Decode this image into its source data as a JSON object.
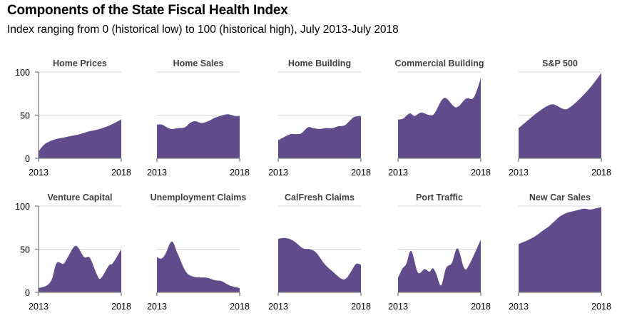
{
  "title": "Components of the State Fiscal Health Index",
  "subtitle": "Index ranging from 0 (historical low) to 100 (historical high), July 2013-July 2018",
  "colors": {
    "area": "#614b8b",
    "grid": "#d9d9d9",
    "axis": "#7f7f7f",
    "panel_title": "#404040"
  },
  "chart_data": [
    {
      "type": "area",
      "title": "Home Prices",
      "xlabel": "",
      "ylabel": "",
      "ylim": [
        0,
        100
      ],
      "yticks": [
        "0",
        "50",
        "100"
      ],
      "xtick_labels": [
        "2013",
        "2018"
      ],
      "grid": true,
      "show_y_labels": true,
      "x": [
        0,
        0.05,
        0.1,
        0.2,
        0.3,
        0.4,
        0.5,
        0.6,
        0.7,
        0.8,
        0.9,
        1.0
      ],
      "values": [
        8,
        14,
        18,
        22,
        24,
        26,
        28,
        31,
        33,
        36,
        40,
        45
      ]
    },
    {
      "type": "area",
      "title": "Home Sales",
      "xlabel": "",
      "ylabel": "",
      "ylim": [
        0,
        100
      ],
      "yticks": [
        "0",
        "50",
        "100"
      ],
      "xtick_labels": [
        "2013",
        "2018"
      ],
      "grid": true,
      "show_y_labels": false,
      "x": [
        0,
        0.06,
        0.12,
        0.18,
        0.26,
        0.34,
        0.4,
        0.46,
        0.54,
        0.62,
        0.7,
        0.8,
        0.86,
        0.94,
        1.0
      ],
      "values": [
        39,
        39,
        36,
        34,
        35,
        36,
        41,
        43,
        41,
        43,
        47,
        50,
        51,
        49,
        49
      ]
    },
    {
      "type": "area",
      "title": "Home Building",
      "xlabel": "",
      "ylabel": "",
      "ylim": [
        0,
        100
      ],
      "yticks": [
        "0",
        "50",
        "100"
      ],
      "xtick_labels": [
        "2013",
        "2018"
      ],
      "grid": true,
      "show_y_labels": false,
      "x": [
        0,
        0.08,
        0.15,
        0.22,
        0.28,
        0.36,
        0.42,
        0.5,
        0.58,
        0.66,
        0.72,
        0.8,
        0.86,
        0.92,
        1.0
      ],
      "values": [
        21,
        25,
        28,
        28,
        29,
        36,
        35,
        34,
        35,
        35,
        37,
        38,
        43,
        48,
        49
      ]
    },
    {
      "type": "area",
      "title": "Commercial Building",
      "xlabel": "",
      "ylabel": "",
      "ylim": [
        0,
        100
      ],
      "yticks": [
        "0",
        "50",
        "100"
      ],
      "xtick_labels": [
        "2013",
        "2018"
      ],
      "grid": true,
      "show_y_labels": false,
      "x": [
        0,
        0.06,
        0.14,
        0.2,
        0.28,
        0.38,
        0.44,
        0.56,
        0.7,
        0.82,
        0.9,
        0.95,
        1.0
      ],
      "values": [
        45,
        46,
        52,
        49,
        53,
        50,
        52,
        70,
        59,
        69,
        69,
        78,
        93
      ]
    },
    {
      "type": "area",
      "title": "S&P 500",
      "xlabel": "",
      "ylabel": "",
      "ylim": [
        0,
        100
      ],
      "yticks": [
        "0",
        "50",
        "100"
      ],
      "xtick_labels": [
        "2013",
        "2018"
      ],
      "grid": true,
      "show_y_labels": false,
      "x": [
        0,
        0.1,
        0.2,
        0.3,
        0.38,
        0.44,
        0.52,
        0.58,
        0.66,
        0.74,
        0.82,
        0.9,
        1.0
      ],
      "values": [
        35,
        43,
        51,
        58,
        62,
        62,
        58,
        57,
        62,
        69,
        77,
        86,
        99
      ]
    },
    {
      "type": "area",
      "title": "Venture Capital",
      "xlabel": "",
      "ylabel": "",
      "ylim": [
        0,
        100
      ],
      "yticks": [
        "0",
        "50",
        "100"
      ],
      "xtick_labels": [
        "2013",
        "2018"
      ],
      "grid": true,
      "show_y_labels": true,
      "x": [
        0,
        0.1,
        0.16,
        0.22,
        0.3,
        0.35,
        0.45,
        0.55,
        0.62,
        0.7,
        0.75,
        0.85,
        0.9,
        1.0
      ],
      "values": [
        5,
        8,
        15,
        34,
        33,
        40,
        54,
        41,
        40,
        22,
        16,
        31,
        34,
        50
      ]
    },
    {
      "type": "area",
      "title": "Unemployment Claims",
      "xlabel": "",
      "ylabel": "",
      "ylim": [
        0,
        100
      ],
      "yticks": [
        "0",
        "50",
        "100"
      ],
      "xtick_labels": [
        "2013",
        "2018"
      ],
      "grid": true,
      "show_y_labels": false,
      "x": [
        0,
        0.05,
        0.1,
        0.18,
        0.25,
        0.35,
        0.45,
        0.6,
        0.7,
        0.78,
        0.88,
        1.0
      ],
      "values": [
        41,
        39,
        44,
        59,
        45,
        24,
        18,
        17,
        14,
        13,
        8,
        5
      ]
    },
    {
      "type": "area",
      "title": "CalFresh Claims",
      "xlabel": "",
      "ylabel": "",
      "ylim": [
        0,
        100
      ],
      "yticks": [
        "0",
        "50",
        "100"
      ],
      "xtick_labels": [
        "2013",
        "2018"
      ],
      "grid": true,
      "show_y_labels": false,
      "x": [
        0,
        0.08,
        0.18,
        0.3,
        0.38,
        0.46,
        0.56,
        0.66,
        0.76,
        0.82,
        0.88,
        0.94,
        1.0
      ],
      "values": [
        62,
        63,
        60,
        51,
        50,
        46,
        33,
        24,
        16,
        16,
        24,
        33,
        32
      ]
    },
    {
      "type": "area",
      "title": "Port Traffic",
      "xlabel": "",
      "ylabel": "",
      "ylim": [
        0,
        100
      ],
      "yticks": [
        "0",
        "50",
        "100"
      ],
      "xtick_labels": [
        "2013",
        "2018"
      ],
      "grid": true,
      "show_y_labels": false,
      "x": [
        0,
        0.05,
        0.1,
        0.16,
        0.24,
        0.32,
        0.38,
        0.42,
        0.46,
        0.52,
        0.58,
        0.65,
        0.72,
        0.8,
        0.86,
        1.0
      ],
      "values": [
        17,
        27,
        33,
        48,
        23,
        27,
        24,
        28,
        22,
        8,
        28,
        34,
        51,
        28,
        32,
        61
      ]
    },
    {
      "type": "area",
      "title": "New Car Sales",
      "xlabel": "",
      "ylabel": "",
      "ylim": [
        0,
        100
      ],
      "yticks": [
        "0",
        "50",
        "100"
      ],
      "xtick_labels": [
        "2013",
        "2018"
      ],
      "grid": true,
      "show_y_labels": false,
      "x": [
        0,
        0.1,
        0.2,
        0.3,
        0.36,
        0.44,
        0.5,
        0.58,
        0.66,
        0.74,
        0.8,
        0.86,
        0.92,
        1.0
      ],
      "values": [
        56,
        60,
        65,
        72,
        76,
        83,
        88,
        92,
        94,
        96,
        97,
        96,
        97,
        99
      ]
    }
  ]
}
